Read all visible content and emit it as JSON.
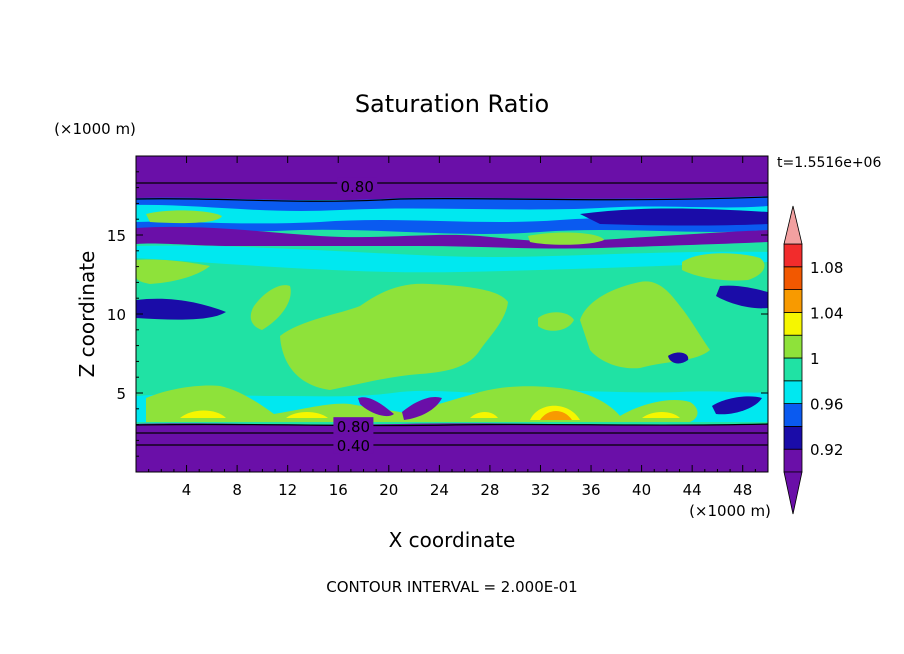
{
  "chart_data": {
    "type": "heatmap",
    "title": "Saturation Ratio",
    "xlabel": "X coordinate",
    "ylabel": "Z coordinate",
    "x_unit": "(×1000 m)",
    "y_unit": "(×1000 m)",
    "time_label": "t=1.5516e+06",
    "footer": "CONTOUR INTERVAL = 2.000E-01",
    "xlim": [
      0,
      50
    ],
    "ylim": [
      0,
      20
    ],
    "x_ticks": [
      4,
      8,
      12,
      16,
      20,
      24,
      28,
      32,
      36,
      40,
      44,
      48
    ],
    "x_tick_labels": [
      "4",
      "8",
      "12",
      "16",
      "20",
      "24",
      "28",
      "32",
      "36",
      "40",
      "44",
      "48"
    ],
    "y_ticks": [
      5,
      10,
      15
    ],
    "y_tick_labels": [
      "5",
      "10",
      "15"
    ],
    "contour_labels": [
      {
        "text": "0.80",
        "x": 17.5,
        "y": 18.1
      },
      {
        "text": "0.80",
        "x": 17.2,
        "y": 2.9
      },
      {
        "text": "0.40",
        "x": 17.2,
        "y": 1.7
      }
    ],
    "colorbar": {
      "levels": [
        0.9,
        0.92,
        0.94,
        0.96,
        0.98,
        1.0,
        1.02,
        1.04,
        1.06,
        1.08,
        1.1
      ],
      "tick_labels": [
        "0.92",
        "0.96",
        "1",
        "1.04",
        "1.08"
      ],
      "tick_values": [
        0.92,
        0.96,
        1.0,
        1.04,
        1.08
      ],
      "colors": [
        "#6a0fa8",
        "#1a0ca8",
        "#0a5af0",
        "#00e8f0",
        "#20e2a4",
        "#8ee23a",
        "#f6f600",
        "#f89a00",
        "#f25800",
        "#f22c2c"
      ],
      "under_color": "#6a0fa8",
      "over_color": "#f2a0a0"
    },
    "fields": {
      "background": "#20e2a4",
      "bands": [
        {
          "name": "upper-dry-layer",
          "y_range": [
            17.6,
            20
          ],
          "value": 0.85,
          "color": "#6a0fa8"
        },
        {
          "name": "lower-dry-layer",
          "y_range": [
            0,
            3.4
          ],
          "value": 0.6,
          "color": "#6a0fa8"
        }
      ],
      "contour_levels_drawn": [
        0.8,
        0.8,
        0.4
      ]
    }
  }
}
